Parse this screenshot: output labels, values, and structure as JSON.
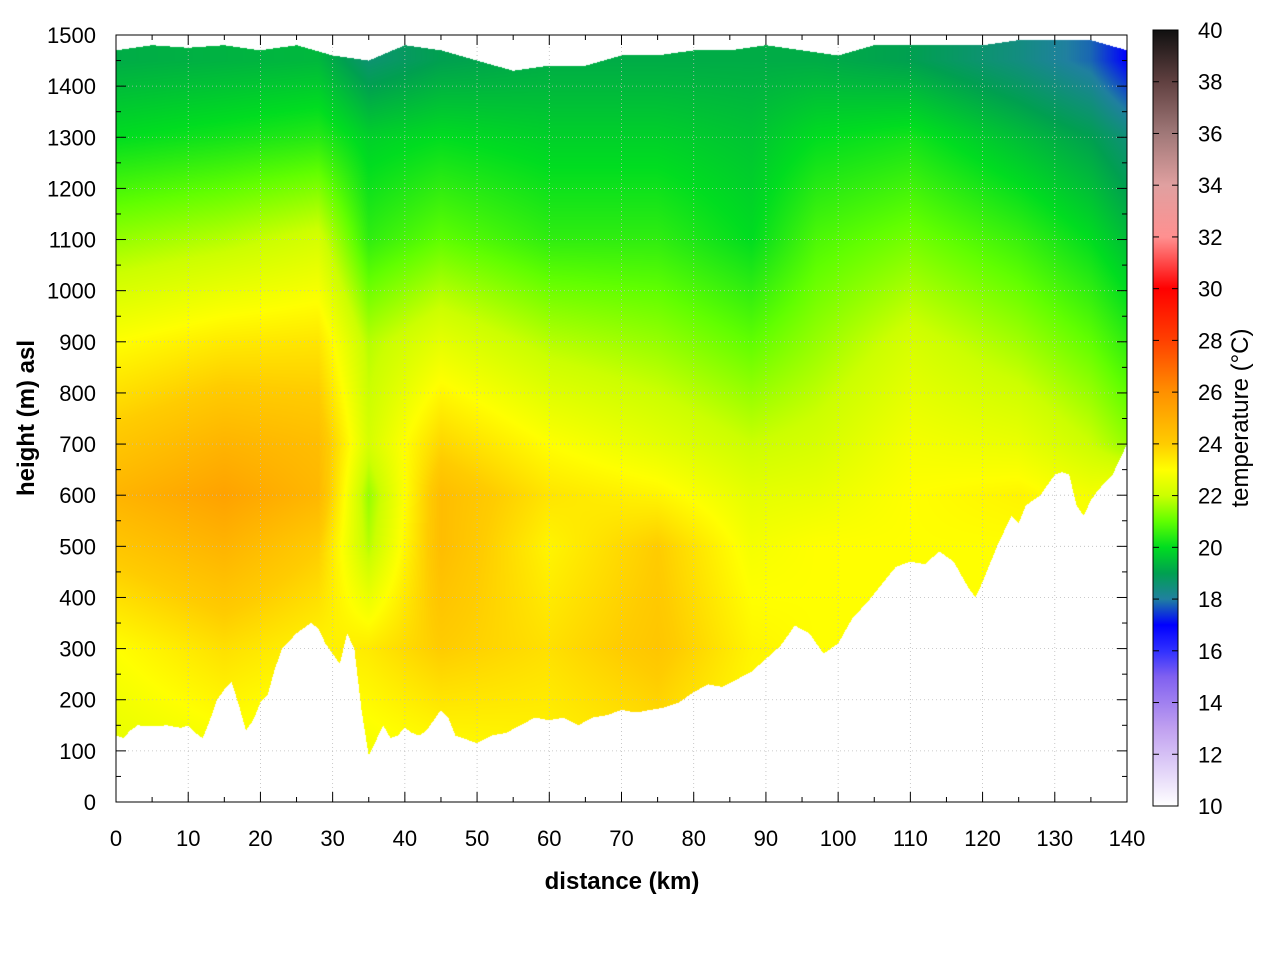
{
  "chart_data": {
    "type": "heatmap",
    "title": "",
    "xlabel": "distance (km)",
    "ylabel": "height (m) asl",
    "colorbar_label": "temperature (°C)",
    "xlim": [
      0,
      140
    ],
    "ylim": [
      0,
      1500
    ],
    "clim": [
      10,
      40
    ],
    "grid": true,
    "x_ticks": [
      0,
      10,
      20,
      30,
      40,
      50,
      60,
      70,
      80,
      90,
      100,
      110,
      120,
      130,
      140
    ],
    "y_ticks": [
      0,
      100,
      200,
      300,
      400,
      500,
      600,
      700,
      800,
      900,
      1000,
      1100,
      1200,
      1300,
      1400,
      1500
    ],
    "c_ticks": [
      10,
      12,
      14,
      16,
      18,
      20,
      22,
      24,
      26,
      28,
      30,
      32,
      34,
      36,
      38,
      40
    ],
    "colormap": [
      {
        "value": 10,
        "color": "#ffffff"
      },
      {
        "value": 13,
        "color": "#c0a0f0"
      },
      {
        "value": 15,
        "color": "#8060f0"
      },
      {
        "value": 16,
        "color": "#3030ff"
      },
      {
        "value": 17,
        "color": "#0000ff"
      },
      {
        "value": 18,
        "color": "#2080a0"
      },
      {
        "value": 19,
        "color": "#00a050"
      },
      {
        "value": 20,
        "color": "#00dd20"
      },
      {
        "value": 21,
        "color": "#60ff00"
      },
      {
        "value": 22,
        "color": "#ccff00"
      },
      {
        "value": 23,
        "color": "#ffff00"
      },
      {
        "value": 24,
        "color": "#ffcc00"
      },
      {
        "value": 26,
        "color": "#ff9000"
      },
      {
        "value": 28,
        "color": "#ff4000"
      },
      {
        "value": 30,
        "color": "#ff0000"
      },
      {
        "value": 32,
        "color": "#ff9090"
      },
      {
        "value": 34,
        "color": "#e0a0a0"
      },
      {
        "value": 36,
        "color": "#a07878"
      },
      {
        "value": 38,
        "color": "#604040"
      },
      {
        "value": 40,
        "color": "#101010"
      }
    ],
    "terrain_height": {
      "x": [
        0,
        1,
        2,
        3,
        5,
        7,
        9,
        10,
        11,
        12,
        13,
        14,
        15,
        16,
        17,
        18,
        19,
        20,
        21,
        22,
        23,
        24,
        25,
        26,
        27,
        28,
        29,
        30,
        31,
        32,
        33,
        34,
        35,
        36,
        37,
        38,
        39,
        40,
        41,
        42,
        43,
        44,
        45,
        46,
        47,
        48,
        50,
        52,
        54,
        56,
        58,
        60,
        62,
        64,
        66,
        68,
        70,
        72,
        74,
        76,
        78,
        80,
        82,
        84,
        86,
        88,
        90,
        92,
        94,
        96,
        98,
        100,
        102,
        104,
        106,
        108,
        110,
        112,
        114,
        116,
        118,
        119,
        120,
        122,
        124,
        125,
        126,
        128,
        130,
        131,
        132,
        133,
        134,
        135,
        136,
        138,
        140
      ],
      "values": [
        130,
        125,
        140,
        150,
        148,
        150,
        145,
        150,
        135,
        125,
        160,
        200,
        220,
        235,
        190,
        140,
        160,
        195,
        210,
        260,
        300,
        315,
        330,
        340,
        350,
        340,
        310,
        290,
        270,
        330,
        300,
        180,
        90,
        120,
        150,
        125,
        130,
        145,
        135,
        130,
        140,
        160,
        180,
        165,
        130,
        125,
        115,
        130,
        135,
        150,
        165,
        160,
        165,
        150,
        165,
        170,
        180,
        175,
        180,
        185,
        195,
        215,
        230,
        225,
        240,
        255,
        280,
        305,
        345,
        330,
        290,
        310,
        360,
        390,
        425,
        460,
        470,
        465,
        490,
        470,
        420,
        400,
        430,
        500,
        560,
        545,
        580,
        600,
        640,
        645,
        640,
        580,
        560,
        590,
        610,
        640,
        700
      ]
    },
    "model_top_height": {
      "x": [
        0,
        5,
        10,
        15,
        20,
        25,
        30,
        35,
        40,
        45,
        50,
        55,
        60,
        65,
        70,
        75,
        80,
        85,
        90,
        95,
        100,
        105,
        110,
        115,
        120,
        125,
        130,
        135,
        140
      ],
      "values": [
        1470,
        1480,
        1475,
        1480,
        1470,
        1480,
        1460,
        1450,
        1480,
        1470,
        1450,
        1430,
        1440,
        1440,
        1460,
        1460,
        1470,
        1470,
        1480,
        1470,
        1460,
        1480,
        1480,
        1480,
        1480,
        1490,
        1490,
        1490,
        1470
      ]
    },
    "temperature_profile": {
      "x": [
        0,
        15,
        28,
        35,
        45,
        60,
        75,
        88,
        97,
        110,
        125,
        135,
        140
      ],
      "height": [
        100,
        300,
        500,
        600,
        700,
        900,
        1100,
        1300,
        1450
      ],
      "values": [
        [
          22.5,
          23.0,
          24.2,
          24.8,
          24.2,
          23.0,
          21.5,
          20.0,
          19.2
        ],
        [
          22.8,
          23.6,
          24.8,
          25.4,
          24.8,
          23.4,
          21.8,
          20.2,
          19.3
        ],
        [
          22.6,
          23.2,
          24.0,
          24.7,
          24.5,
          23.5,
          22.2,
          20.4,
          19.4
        ],
        [
          22.8,
          23.4,
          21.8,
          21.5,
          22.2,
          21.8,
          20.5,
          19.8,
          18.6
        ],
        [
          23.0,
          24.0,
          24.5,
          24.5,
          23.8,
          22.5,
          21.0,
          20.0,
          19.0
        ],
        [
          23.2,
          23.6,
          23.2,
          23.5,
          23.0,
          21.8,
          20.5,
          19.8,
          19.2
        ],
        [
          23.5,
          24.2,
          24.0,
          23.2,
          22.5,
          21.5,
          20.5,
          19.8,
          19.2
        ],
        [
          23.0,
          23.2,
          22.8,
          22.5,
          22.0,
          21.0,
          20.0,
          19.6,
          19.2
        ],
        [
          23.0,
          23.0,
          23.0,
          22.6,
          22.2,
          21.5,
          20.8,
          20.0,
          19.2
        ],
        [
          23.0,
          23.0,
          23.0,
          23.0,
          22.8,
          22.2,
          21.2,
          20.2,
          19.0
        ],
        [
          23.0,
          23.0,
          23.0,
          23.2,
          22.6,
          21.6,
          20.6,
          19.5,
          18.4
        ],
        [
          23.0,
          23.0,
          23.0,
          22.8,
          22.0,
          21.0,
          20.0,
          19.0,
          17.8
        ],
        [
          23.0,
          23.0,
          23.0,
          23.0,
          21.5,
          20.5,
          19.5,
          18.5,
          17.0
        ]
      ]
    }
  }
}
